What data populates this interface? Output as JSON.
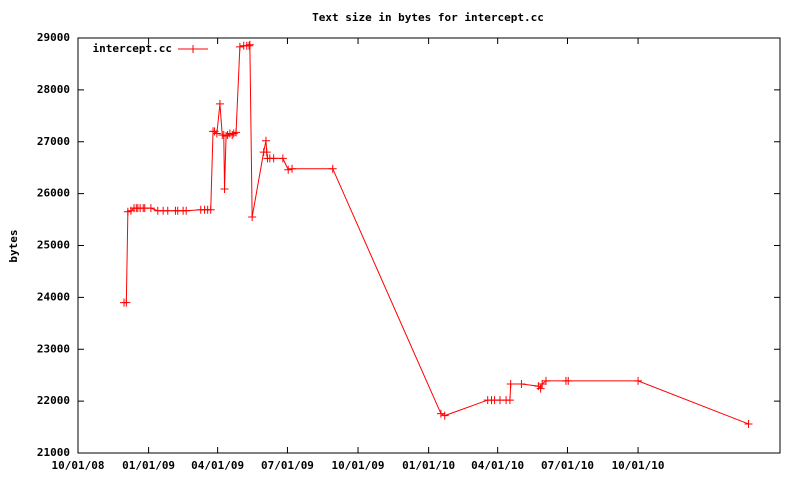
{
  "chart_data": {
    "type": "line",
    "title": "Text size in bytes for intercept.cc",
    "ylabel": "bytes",
    "x": [
      "11/30/08",
      "12/03/08",
      "12/05/08",
      "12/09/08",
      "12/13/08",
      "12/16/08",
      "12/18/08",
      "12/21/08",
      "12/25/08",
      "12/27/08",
      "01/04/09",
      "01/13/09",
      "01/20/09",
      "01/26/09",
      "02/05/09",
      "02/08/09",
      "02/15/09",
      "02/19/09",
      "03/10/09",
      "03/15/09",
      "03/19/09",
      "03/23/09",
      "03/26/09",
      "03/28/09",
      "03/31/09",
      "04/04/09",
      "04/07/09",
      "04/09/09",
      "04/10/09",
      "04/12/09",
      "04/14/09",
      "04/17/09",
      "04/20/09",
      "04/22/09",
      "04/25/09",
      "04/30/09",
      "05/05/09",
      "05/09/09",
      "05/12/09",
      "05/13/09",
      "05/16/09",
      "05/31/09",
      "06/03/09",
      "06/04/09",
      "06/05/09",
      "06/08/09",
      "06/13/09",
      "06/25/09",
      "07/02/09",
      "07/07/09",
      "08/29/09",
      "01/17/10",
      "01/22/10",
      "03/19/10",
      "03/24/10",
      "03/28/10",
      "04/04/10",
      "04/12/10",
      "04/17/10",
      "04/18/10",
      "05/02/10",
      "05/24/10",
      "05/27/10",
      "05/29/10",
      "06/03/10",
      "06/29/10",
      "07/02/10",
      "10/01/10",
      "02/22/11"
    ],
    "series": [
      {
        "name": "intercept.cc",
        "color": "#ff0000",
        "values": [
          23900,
          23900,
          25650,
          25670,
          25720,
          25720,
          25720,
          25720,
          25720,
          25720,
          25720,
          25670,
          25670,
          25670,
          25670,
          25670,
          25670,
          25670,
          25690,
          25690,
          25690,
          25690,
          27200,
          27200,
          27160,
          27730,
          27130,
          27130,
          26090,
          27110,
          27130,
          27160,
          27130,
          27160,
          27180,
          28830,
          28850,
          28850,
          28850,
          28870,
          25550,
          26800,
          27020,
          26800,
          26680,
          26680,
          26680,
          26680,
          26460,
          26480,
          26480,
          21760,
          21720,
          22020,
          22020,
          22020,
          22020,
          22020,
          22020,
          22330,
          22330,
          22290,
          22240,
          22330,
          22390,
          22390,
          22390,
          22390,
          21560
        ]
      }
    ],
    "xlim": [
      "10/01/08",
      "04/04/11"
    ],
    "xticks": [
      "10/01/08",
      "01/01/09",
      "04/01/09",
      "07/01/09",
      "10/01/09",
      "01/01/10",
      "04/01/10",
      "07/01/10",
      "10/01/10"
    ],
    "ylim": [
      21000,
      29000
    ],
    "yticks": [
      21000,
      22000,
      23000,
      24000,
      25000,
      26000,
      27000,
      28000,
      29000
    ],
    "legend": "top-left",
    "grid": false
  }
}
